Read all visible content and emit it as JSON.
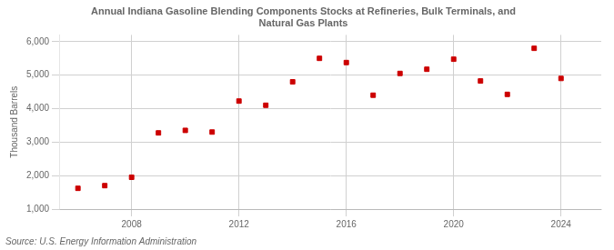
{
  "chart_data": {
    "type": "scatter",
    "title": "Annual Indiana Gasoline Blending Components Stocks at Refineries, Bulk Terminals, and\nNatural Gas Plants",
    "ylabel": "Thousand Barrels",
    "annotations": [
      "Source: U.S. Energy Information Administration"
    ],
    "x": [
      2006,
      2007,
      2008,
      2009,
      2010,
      2011,
      2012,
      2013,
      2014,
      2015,
      2016,
      2017,
      2018,
      2019,
      2020,
      2021,
      2022,
      2023,
      2024
    ],
    "values": [
      1620,
      1700,
      1950,
      3275,
      3350,
      3300,
      4225,
      4100,
      4800,
      5500,
      5375,
      4400,
      5050,
      5175,
      5475,
      4825,
      4425,
      5800,
      4900
    ],
    "color": "#cc0000",
    "marker": "square",
    "xlim": [
      2005.3,
      2025.5
    ],
    "xticks": [
      2008,
      2012,
      2016,
      2020,
      2024
    ],
    "ylim": [
      1000,
      6200
    ],
    "yticks": [
      {
        "value": 1000,
        "label": "1,000"
      },
      {
        "value": 2000,
        "label": "2,000"
      },
      {
        "value": 3000,
        "label": "3,000"
      },
      {
        "value": 4000,
        "label": "4,000"
      },
      {
        "value": 5000,
        "label": "5,000"
      },
      {
        "value": 6000,
        "label": "6,000"
      }
    ],
    "grid": true
  }
}
